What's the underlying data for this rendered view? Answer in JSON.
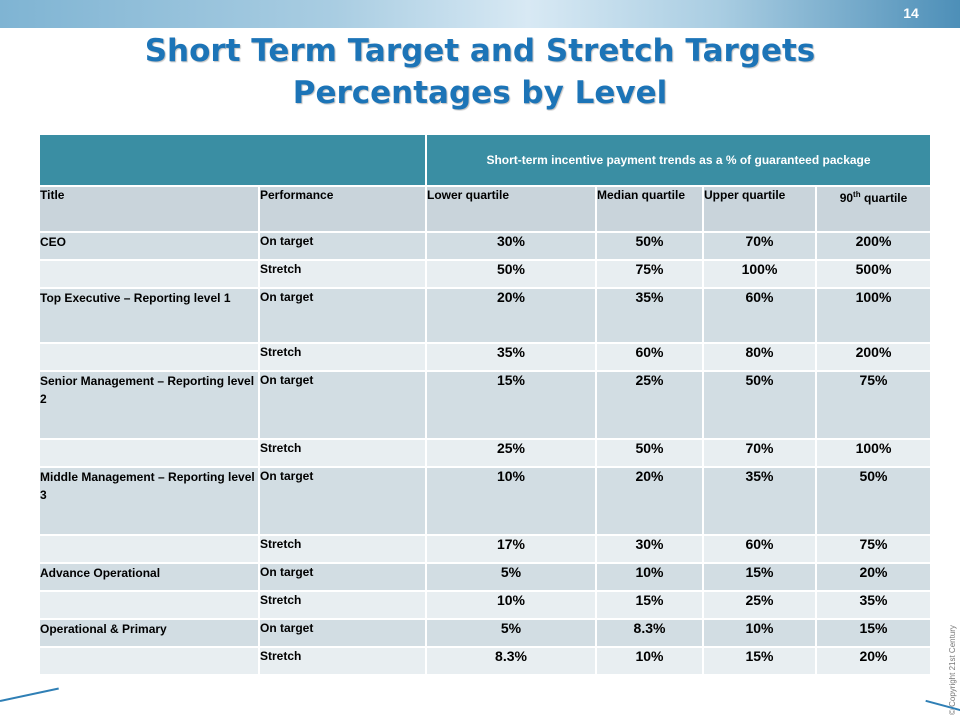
{
  "page_number": "14",
  "title": {
    "line1": "Short Term Target and Stretch Targets",
    "line2": "Percentages by Level"
  },
  "copyright": "© Copyright 21st Century",
  "table": {
    "group_header": "Short-term incentive payment trends as a % of guaranteed package",
    "columns": {
      "title": "Title",
      "performance": "Performance",
      "lower": "Lower quartile",
      "median": "Median quartile",
      "upper": "Upper quartile",
      "q90_prefix": "90",
      "q90_sup": "th",
      "q90_suffix": " quartile"
    },
    "rows": [
      {
        "title": "CEO",
        "performance": "On target",
        "values": [
          "30%",
          "50%",
          "70%",
          "200%"
        ]
      },
      {
        "title": "",
        "performance": "Stretch",
        "values": [
          "50%",
          "75%",
          "100%",
          "500%"
        ]
      },
      {
        "title": "Top Executive – Reporting level 1",
        "performance": "On target",
        "values": [
          "20%",
          "35%",
          "60%",
          "100%"
        ]
      },
      {
        "title": "",
        "performance": "Stretch",
        "values": [
          "35%",
          "60%",
          "80%",
          "200%"
        ]
      },
      {
        "title": "Senior Management – Reporting level 2",
        "performance": "On target",
        "values": [
          "15%",
          "25%",
          "50%",
          "75%"
        ]
      },
      {
        "title": "",
        "performance": "Stretch",
        "values": [
          "25%",
          "50%",
          "70%",
          "100%"
        ]
      },
      {
        "title": "Middle Management – Reporting level 3",
        "performance": "On target",
        "values": [
          "10%",
          "20%",
          "35%",
          "50%"
        ]
      },
      {
        "title": "",
        "performance": "Stretch",
        "values": [
          "17%",
          "30%",
          "60%",
          "75%"
        ]
      },
      {
        "title": "Advance Operational",
        "performance": "On target",
        "values": [
          "5%",
          "10%",
          "15%",
          "20%"
        ]
      },
      {
        "title": "",
        "performance": "Stretch",
        "values": [
          "10%",
          "15%",
          "25%",
          "35%"
        ]
      },
      {
        "title": "Operational & Primary",
        "performance": "On target",
        "values": [
          "5%",
          "8.3%",
          "10%",
          "15%"
        ]
      },
      {
        "title": "",
        "performance": "Stretch",
        "values": [
          "8.3%",
          "10%",
          "15%",
          "20%"
        ]
      }
    ]
  }
}
